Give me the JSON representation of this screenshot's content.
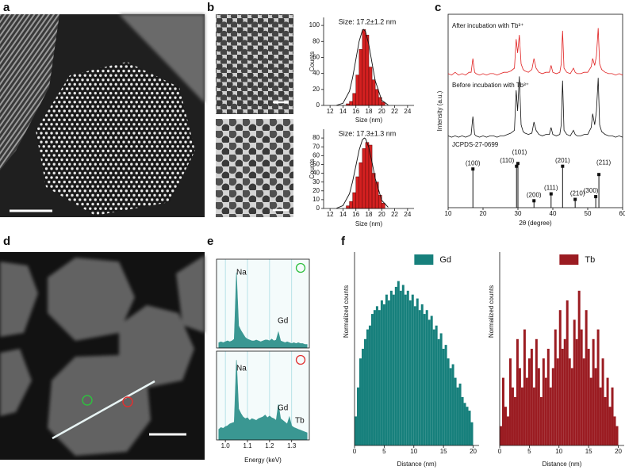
{
  "panel_labels": [
    "a",
    "b",
    "c",
    "d",
    "e",
    "f"
  ],
  "chart_data": [
    {
      "type": "histogram",
      "annotation": "Size: 17.2±1.2 nm",
      "x_label": "Size (nm)",
      "y_label": "Counts",
      "color": "#d42020",
      "bins": [
        14.5,
        15,
        15.5,
        16,
        16.5,
        17,
        17.5,
        18,
        18.5,
        19,
        19.5,
        20,
        20.5
      ],
      "values": [
        2,
        5,
        15,
        38,
        70,
        95,
        88,
        48,
        32,
        20,
        10,
        4
      ],
      "fit": {
        "x": [
          13,
          14,
          15,
          15.5,
          16,
          16.5,
          17,
          17.2,
          17.5,
          18,
          18.5,
          19,
          20,
          21
        ],
        "values": [
          0.2,
          2.7,
          17.7,
          34.9,
          57.6,
          80.2,
          93.7,
          95,
          92.1,
          76.1,
          52.8,
          30.8,
          6.3,
          0.6
        ]
      },
      "xlim": [
        11,
        25
      ],
      "xticks": [
        12,
        14,
        16,
        18,
        20,
        22,
        24
      ],
      "ylim": [
        0,
        110
      ],
      "yticks": [
        0,
        20,
        40,
        60,
        80,
        100
      ]
    },
    {
      "type": "histogram",
      "annotation": "Size: 17.3±1.3 nm",
      "x_label": "Size (nm)",
      "y_label": "Counts",
      "color": "#d42020",
      "bins": [
        14.5,
        15,
        15.5,
        16,
        16.5,
        17,
        17.5,
        18,
        18.5,
        19,
        19.5,
        20,
        20.5
      ],
      "values": [
        3,
        8,
        18,
        36,
        52,
        68,
        75,
        72,
        40,
        30,
        15,
        6
      ],
      "fit": {
        "x": [
          13,
          14,
          15,
          15.5,
          16,
          16.5,
          17,
          17.3,
          17.5,
          18,
          18.5,
          19,
          20,
          21
        ],
        "values": [
          0.3,
          3.2,
          16.7,
          30.7,
          48.5,
          66.2,
          77.9,
          80,
          79.1,
          69.2,
          52.2,
          34,
          9.2,
          1.4
        ]
      },
      "xlim": [
        11,
        25
      ],
      "xticks": [
        12,
        14,
        16,
        18,
        20,
        22,
        24
      ],
      "ylim": [
        0,
        90
      ],
      "yticks": [
        0,
        10,
        20,
        30,
        40,
        50,
        60,
        70,
        80
      ]
    },
    {
      "type": "line",
      "x_label": "2θ (degree)",
      "y_label": "Intensity (a.u.)",
      "x": [
        10,
        11,
        12,
        13,
        14,
        15,
        16,
        16.6,
        17.1,
        17.6,
        18,
        19,
        20,
        21,
        22,
        23,
        24,
        25,
        26,
        27,
        28,
        29,
        29.5,
        29.9,
        30.4,
        30.9,
        31.5,
        32,
        33,
        34,
        34.6,
        35.2,
        36,
        37,
        38,
        39,
        39.5,
        40,
        41,
        42,
        42.4,
        42.8,
        43.2,
        44,
        45,
        45.9,
        46.4,
        47,
        48,
        49,
        50,
        51,
        51.4,
        52,
        52.5,
        53,
        53.4,
        54,
        55,
        56,
        57,
        58,
        59,
        60
      ],
      "series": [
        {
          "name": "After incubation with Tb³⁺",
          "color": "#e02020",
          "values": [
            97,
            96,
            98,
            96,
            97,
            96,
            98,
            98,
            108,
            98,
            97,
            96,
            97,
            96,
            97,
            97,
            96,
            97,
            98,
            98,
            99,
            101,
            122,
            112,
            125,
            104,
            100,
            99,
            98,
            100,
            108,
            101,
            98,
            97,
            98,
            98,
            103,
            98,
            97,
            98,
            104,
            128,
            101,
            98,
            97,
            101,
            98,
            97,
            97,
            98,
            98,
            102,
            108,
            103,
            110,
            130,
            104,
            100,
            98,
            97,
            97,
            96,
            97,
            96
          ]
        },
        {
          "name": "Before incubation with Tb³⁺",
          "color": "#111111",
          "values": [
            52,
            51,
            52,
            51,
            52,
            51,
            52,
            53,
            66,
            53,
            52,
            51,
            52,
            51,
            52,
            52,
            51,
            52,
            52,
            53,
            54,
            56,
            85,
            70,
            95,
            60,
            55,
            54,
            53,
            54,
            62,
            56,
            53,
            52,
            53,
            53,
            58,
            53,
            52,
            53,
            60,
            92,
            56,
            53,
            52,
            56,
            53,
            52,
            52,
            53,
            53,
            58,
            68,
            60,
            70,
            94,
            60,
            55,
            53,
            52,
            52,
            51,
            52,
            51
          ]
        }
      ],
      "reference": {
        "name": "JCPDS-27-0699",
        "color": "#111111",
        "x": [
          17.1,
          29.6,
          30.0,
          34.6,
          39.5,
          42.8,
          46.4,
          52.3,
          53.2
        ],
        "values": [
          28,
          30,
          32,
          5,
          10,
          30,
          6,
          8,
          24
        ],
        "labels": [
          "(100)",
          "(110)",
          "(101)",
          "(200)",
          "(111)",
          "(201)",
          "(210)",
          "(300)",
          "(211)"
        ]
      },
      "xlim": [
        10,
        60
      ],
      "xticks": [
        10,
        20,
        30,
        40,
        50,
        60
      ],
      "ylim": [
        0,
        140
      ]
    },
    {
      "type": "area",
      "panels": "stacked",
      "x_label": "Energy (keV)",
      "grid": true,
      "x": [
        0.97,
        0.98,
        0.99,
        1.0,
        1.01,
        1.02,
        1.03,
        1.04,
        1.05,
        1.06,
        1.07,
        1.08,
        1.09,
        1.1,
        1.11,
        1.12,
        1.13,
        1.14,
        1.15,
        1.16,
        1.17,
        1.18,
        1.19,
        1.2,
        1.21,
        1.22,
        1.23,
        1.24,
        1.25,
        1.26,
        1.27,
        1.28,
        1.29,
        1.3,
        1.31,
        1.32,
        1.33,
        1.34,
        1.35,
        1.36,
        1.37
      ],
      "series": [
        {
          "color": "#3a9792",
          "peak_labels": [
            "Na",
            "Gd"
          ],
          "values": [
            6,
            7,
            6,
            7,
            8,
            7,
            8,
            10,
            85,
            25,
            20,
            16,
            12,
            10,
            9,
            8,
            8,
            9,
            8,
            7,
            8,
            9,
            9,
            8,
            10,
            8,
            9,
            18,
            8,
            7,
            6,
            7,
            6,
            5,
            6,
            5,
            6,
            5,
            5,
            4,
            4
          ]
        },
        {
          "color": "#3a9792",
          "peak_labels": [
            "Na",
            "Gd",
            "Tb"
          ],
          "values": [
            12,
            14,
            13,
            15,
            16,
            18,
            19,
            20,
            90,
            35,
            30,
            26,
            24,
            25,
            22,
            24,
            23,
            22,
            24,
            25,
            26,
            28,
            25,
            27,
            25,
            24,
            22,
            40,
            24,
            22,
            20,
            18,
            26,
            16,
            14,
            13,
            12,
            11,
            10,
            9,
            8
          ]
        }
      ],
      "xlim": [
        0.96,
        1.38
      ],
      "xticks": [
        {
          "value": 1.0,
          "label": "1.0"
        },
        1.1,
        1.2,
        1.3
      ],
      "ylim": [
        0,
        100
      ]
    },
    {
      "type": "histogram",
      "x_label": "Distance (nm)",
      "y_label": "Normalized counts",
      "legend": "top",
      "bins": [
        0,
        0.4,
        0.8,
        1.2,
        1.6,
        2,
        2.4,
        2.8,
        3.2,
        3.6,
        4,
        4.4,
        4.8,
        5.2,
        5.6,
        6,
        6.4,
        6.8,
        7.2,
        7.6,
        8,
        8.4,
        8.8,
        9.2,
        9.6,
        10,
        10.4,
        10.8,
        11.2,
        11.6,
        12,
        12.4,
        12.8,
        13.2,
        13.6,
        14,
        14.4,
        14.8,
        15.2,
        15.6,
        16,
        16.4,
        16.8,
        17.2,
        17.6,
        18,
        18.4,
        18.8,
        19.2,
        19.6,
        20
      ],
      "series": [
        {
          "name": "Gd",
          "color": "#17807c",
          "values": [
            15,
            30,
            45,
            50,
            55,
            60,
            62,
            68,
            70,
            72,
            70,
            75,
            73,
            78,
            75,
            80,
            78,
            82,
            85,
            80,
            83,
            78,
            80,
            75,
            78,
            72,
            76,
            70,
            73,
            68,
            70,
            65,
            67,
            60,
            62,
            55,
            58,
            50,
            52,
            45,
            40,
            42,
            35,
            30,
            32,
            25,
            22,
            20,
            18,
            12
          ]
        }
      ],
      "xlim": [
        0,
        21
      ],
      "xticks": [
        0,
        5,
        10,
        15,
        20
      ],
      "ylim": [
        0,
        100
      ]
    },
    {
      "type": "histogram",
      "x_label": "Distance (nm)",
      "y_label": "Normalized counts",
      "legend": "top",
      "bins": [
        0,
        0.4,
        0.8,
        1.2,
        1.6,
        2,
        2.4,
        2.8,
        3.2,
        3.6,
        4,
        4.4,
        4.8,
        5.2,
        5.6,
        6,
        6.4,
        6.8,
        7.2,
        7.6,
        8,
        8.4,
        8.8,
        9.2,
        9.6,
        10,
        10.4,
        10.8,
        11.2,
        11.6,
        12,
        12.4,
        12.8,
        13.2,
        13.6,
        14,
        14.4,
        14.8,
        15.2,
        15.6,
        16,
        16.4,
        16.8,
        17.2,
        17.6,
        18,
        18.4,
        18.8,
        19.2,
        19.6,
        20
      ],
      "series": [
        {
          "name": "Tb",
          "color": "#9b1c22",
          "values": [
            10,
            35,
            20,
            15,
            45,
            30,
            25,
            55,
            40,
            30,
            60,
            35,
            45,
            50,
            30,
            55,
            40,
            25,
            45,
            35,
            50,
            30,
            40,
            60,
            45,
            70,
            50,
            55,
            75,
            45,
            40,
            65,
            55,
            80,
            60,
            45,
            70,
            50,
            35,
            55,
            40,
            60,
            30,
            45,
            25,
            35,
            20,
            30,
            15,
            10
          ]
        }
      ],
      "xlim": [
        0,
        21
      ],
      "xticks": [
        0,
        5,
        10,
        15,
        20
      ],
      "ylim": [
        0,
        100
      ]
    }
  ]
}
